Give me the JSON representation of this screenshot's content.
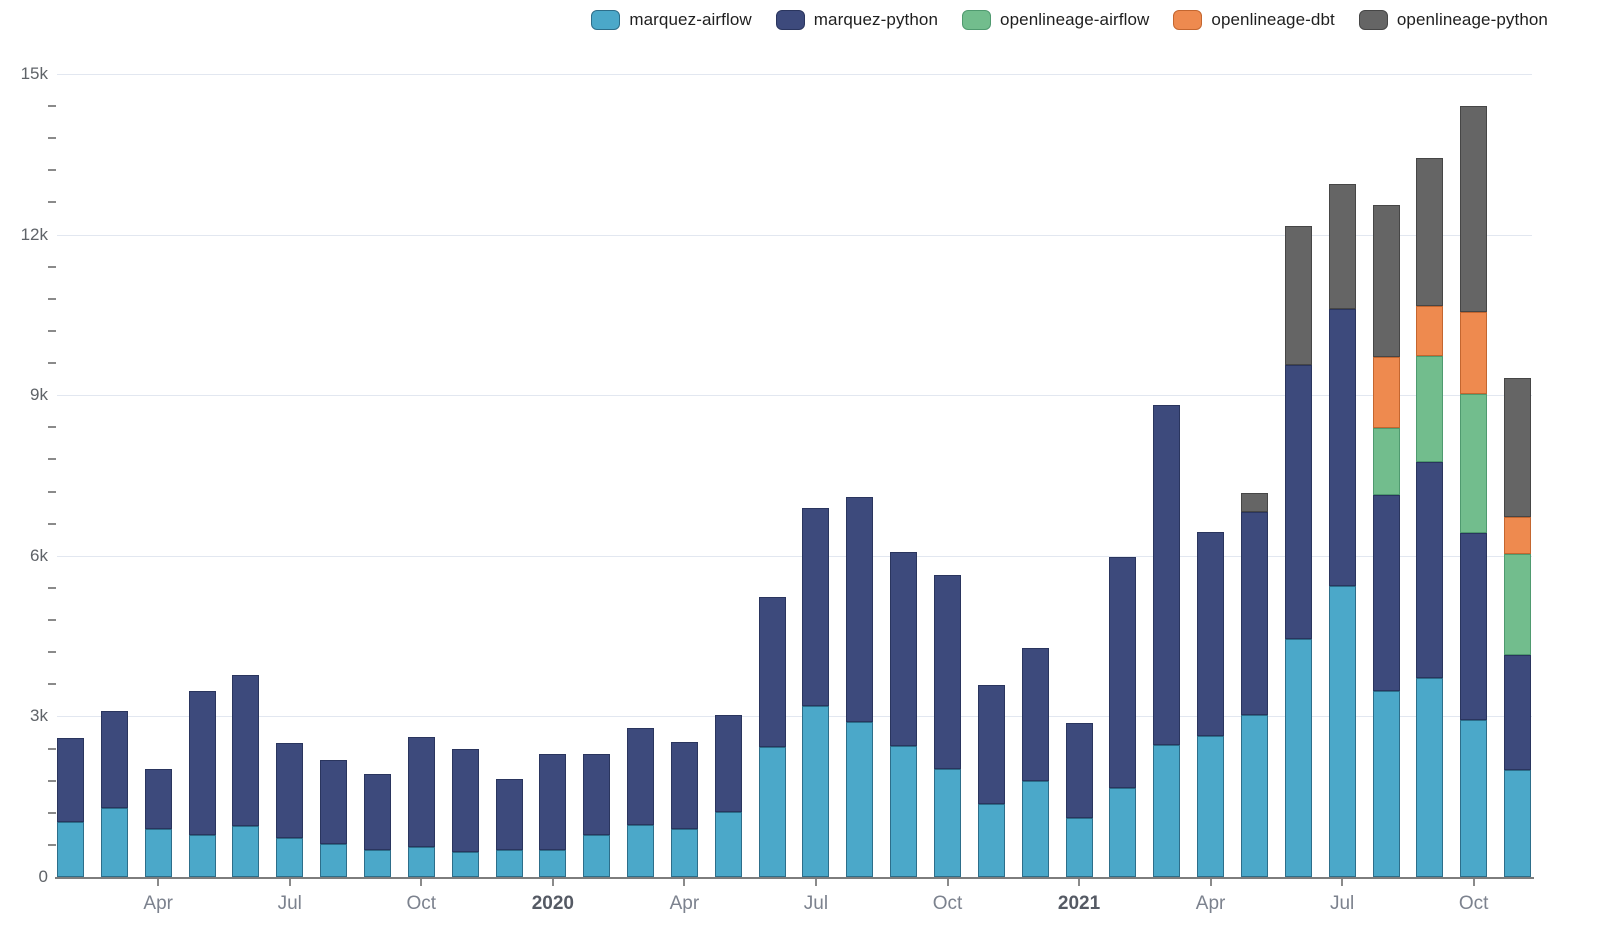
{
  "legend": {
    "items": [
      {
        "label": "marquez-airflow"
      },
      {
        "label": "marquez-python"
      },
      {
        "label": "openlineage-airflow"
      },
      {
        "label": "openlineage-dbt"
      },
      {
        "label": "openlineage-python"
      }
    ]
  },
  "chart_data": {
    "type": "bar",
    "stacked": true,
    "title": "",
    "xlabel": "",
    "ylabel": "",
    "grid": true,
    "legend_position": "top",
    "ylim": [
      0,
      15000
    ],
    "minor_tick_step": 600,
    "categories": [
      "2019-02",
      "2019-03",
      "2019-04",
      "2019-05",
      "2019-06",
      "2019-07",
      "2019-08",
      "2019-09",
      "2019-10",
      "2019-11",
      "2019-12",
      "2020-01",
      "2020-02",
      "2020-03",
      "2020-04",
      "2020-05",
      "2020-06",
      "2020-07",
      "2020-08",
      "2020-09",
      "2020-10",
      "2020-11",
      "2020-12",
      "2021-01",
      "2021-02",
      "2021-03",
      "2021-04",
      "2021-05",
      "2021-06",
      "2021-07",
      "2021-08",
      "2021-09",
      "2021-10",
      "2021-11"
    ],
    "series": [
      {
        "name": "marquez-airflow",
        "color": "#4BA8C9",
        "line_color": "#2d6e8a",
        "values": [
          1030,
          1280,
          900,
          790,
          960,
          720,
          620,
          510,
          560,
          470,
          510,
          510,
          790,
          970,
          900,
          1220,
          2420,
          3200,
          2890,
          2440,
          2010,
          1360,
          1790,
          1100,
          1670,
          2460,
          2640,
          3020,
          4440,
          5440,
          3480,
          3720,
          2930,
          1990
        ]
      },
      {
        "name": "marquez-python",
        "color": "#3D4A7C",
        "line_color": "#2a355e",
        "values": [
          1570,
          1830,
          1110,
          2680,
          2820,
          1780,
          1560,
          1420,
          2060,
          1930,
          1320,
          1780,
          1510,
          1820,
          1630,
          1810,
          2810,
          3690,
          4200,
          3630,
          3630,
          2230,
          2480,
          1780,
          4310,
          6350,
          3810,
          3800,
          5130,
          5170,
          3660,
          4040,
          3490,
          2160
        ]
      },
      {
        "name": "openlineage-airflow",
        "color": "#72BD8D",
        "line_color": "#4f9a6f",
        "values": [
          0,
          0,
          0,
          0,
          0,
          0,
          0,
          0,
          0,
          0,
          0,
          0,
          0,
          0,
          0,
          0,
          0,
          0,
          0,
          0,
          0,
          0,
          0,
          0,
          0,
          0,
          0,
          0,
          0,
          0,
          1250,
          1970,
          2600,
          1890
        ]
      },
      {
        "name": "openlineage-dbt",
        "color": "#EE8A4F",
        "line_color": "#c4662f",
        "values": [
          0,
          0,
          0,
          0,
          0,
          0,
          0,
          0,
          0,
          0,
          0,
          0,
          0,
          0,
          0,
          0,
          0,
          0,
          0,
          0,
          0,
          0,
          0,
          0,
          0,
          0,
          0,
          0,
          0,
          0,
          1320,
          940,
          1530,
          680
        ]
      },
      {
        "name": "openlineage-python",
        "color": "#656565",
        "line_color": "#464646",
        "values": [
          0,
          0,
          0,
          0,
          0,
          0,
          0,
          0,
          0,
          0,
          0,
          0,
          0,
          0,
          0,
          0,
          0,
          0,
          0,
          0,
          0,
          0,
          0,
          0,
          0,
          0,
          0,
          360,
          2590,
          2330,
          2850,
          2770,
          3860,
          2610
        ]
      }
    ],
    "y_ticks": [
      {
        "value": 0,
        "label": "0"
      },
      {
        "value": 3000,
        "label": "3k"
      },
      {
        "value": 6000,
        "label": "6k"
      },
      {
        "value": 9000,
        "label": "9k"
      },
      {
        "value": 12000,
        "label": "12k"
      },
      {
        "value": 15000,
        "label": "15k"
      }
    ],
    "x_tick_labels": [
      {
        "index": 2,
        "label": "Apr",
        "bold": false
      },
      {
        "index": 5,
        "label": "Jul",
        "bold": false
      },
      {
        "index": 8,
        "label": "Oct",
        "bold": false
      },
      {
        "index": 11,
        "label": "2020",
        "bold": true
      },
      {
        "index": 14,
        "label": "Apr",
        "bold": false
      },
      {
        "index": 17,
        "label": "Jul",
        "bold": false
      },
      {
        "index": 20,
        "label": "Oct",
        "bold": false
      },
      {
        "index": 23,
        "label": "2021",
        "bold": true
      },
      {
        "index": 26,
        "label": "Apr",
        "bold": false
      },
      {
        "index": 29,
        "label": "Jul",
        "bold": false
      },
      {
        "index": 32,
        "label": "Oct",
        "bold": false
      }
    ]
  }
}
